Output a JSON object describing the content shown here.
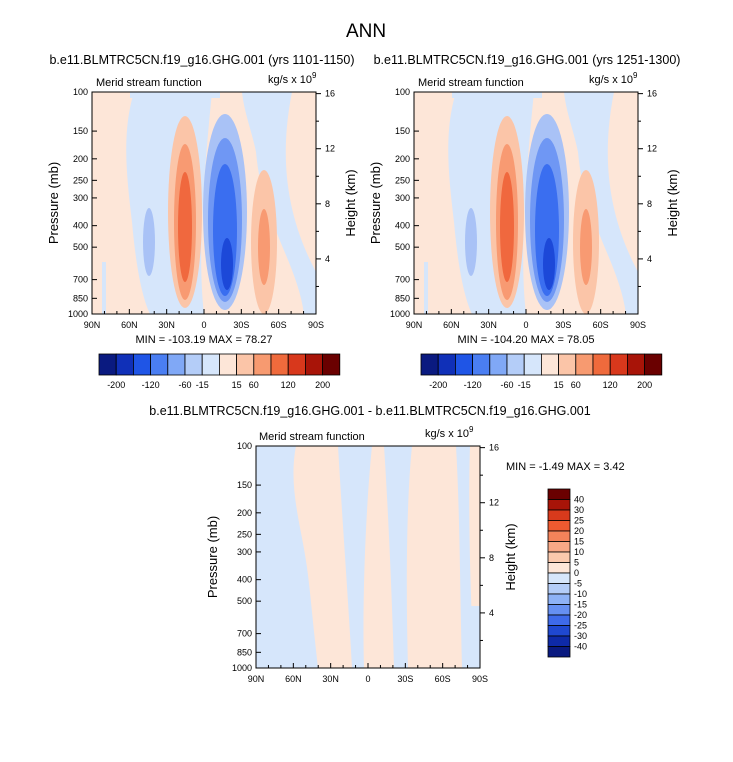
{
  "figure_title": "ANN",
  "chart_data": [
    {
      "type": "contour",
      "title": "b.e11.BLMTRC5CN.f19_g16.GHG.001 (yrs 1101-1150)",
      "left_string": "Merid stream function",
      "units": "kg/s x 10",
      "units_exp": "9",
      "ylabel": "Pressure (mb)",
      "ylabel_right": "Height (km)",
      "x_ticks": [
        "90N",
        "60N",
        "30N",
        "0",
        "30S",
        "60S",
        "90S"
      ],
      "y_ticks": [
        "100",
        "150",
        "200",
        "250",
        "300",
        "400",
        "500",
        "700",
        "850",
        "1000"
      ],
      "y_right_ticks": [
        "16",
        "12",
        "8",
        "4"
      ],
      "min_label": "MIN = ",
      "min": "-103.19",
      "max_label": "MAX = ",
      "max": "78.27",
      "colorbar_levels": [
        "-200",
        "-120",
        "-60",
        "-15",
        "15",
        "60",
        "120",
        "200"
      ],
      "extrema_label": "MIN = -103.19  MAX =  78.27"
    },
    {
      "type": "contour",
      "title": "b.e11.BLMTRC5CN.f19_g16.GHG.001 (yrs 1251-1300)",
      "left_string": "Merid stream function",
      "units": "kg/s x 10",
      "units_exp": "9",
      "ylabel": "Pressure (mb)",
      "ylabel_right": "Height (km)",
      "x_ticks": [
        "90N",
        "60N",
        "30N",
        "0",
        "30S",
        "60S",
        "90S"
      ],
      "y_ticks": [
        "100",
        "150",
        "200",
        "250",
        "300",
        "400",
        "500",
        "700",
        "850",
        "1000"
      ],
      "y_right_ticks": [
        "16",
        "12",
        "8",
        "4"
      ],
      "colorbar_levels": [
        "-200",
        "-120",
        "-60",
        "-15",
        "15",
        "60",
        "120",
        "200"
      ],
      "extrema_label": "MIN = -104.20  MAX =  78.05"
    },
    {
      "type": "contour",
      "title": "b.e11.BLMTRC5CN.f19_g16.GHG.001 - b.e11.BLMTRC5CN.f19_g16.GHG.001",
      "left_string": "Merid stream function",
      "units": "kg/s x 10",
      "units_exp": "9",
      "ylabel": "Pressure (mb)",
      "ylabel_right": "Height (km)",
      "x_ticks": [
        "90N",
        "60N",
        "30N",
        "0",
        "30S",
        "60S",
        "90S"
      ],
      "y_ticks": [
        "100",
        "150",
        "200",
        "250",
        "300",
        "400",
        "500",
        "700",
        "850",
        "1000"
      ],
      "y_right_ticks": [
        "16",
        "12",
        "8",
        "4"
      ],
      "colorbar_levels": [
        "40",
        "30",
        "25",
        "20",
        "15",
        "10",
        "5",
        "0",
        "-5",
        "-10",
        "-15",
        "-20",
        "-25",
        "-30",
        "-40"
      ],
      "extrema_label": "MIN =  -1.49  MAX =   3.42"
    }
  ],
  "colors": {
    "neg": [
      "#0a2a9a",
      "#1c48d8",
      "#3a6ef0",
      "#6f97f4",
      "#a9c2f6",
      "#d6e6fb"
    ],
    "pos": [
      "#fde6d8",
      "#fbc5a8",
      "#f89a72",
      "#f0683e",
      "#d83a1e",
      "#7d0d05"
    ],
    "bar_top": [
      "#0a1a80",
      "#1030b8",
      "#1f55e6",
      "#4a7ef2",
      "#80a8f6",
      "#b4cdf8",
      "#d6e6fb",
      "#fde6d8",
      "#fbc5a8",
      "#f79a70",
      "#ef6a3c",
      "#d8381c",
      "#a81408",
      "#6a0000"
    ],
    "bar_side": [
      "#6a0000",
      "#a81408",
      "#d83a1c",
      "#ee5a30",
      "#f4835a",
      "#f8a886",
      "#fbc9ad",
      "#fde6d8",
      "#d6e6fb",
      "#b4cdf8",
      "#8eb2f6",
      "#6690f2",
      "#3e6aea",
      "#1f48d0",
      "#0e2aa8",
      "#0a1a80"
    ]
  }
}
